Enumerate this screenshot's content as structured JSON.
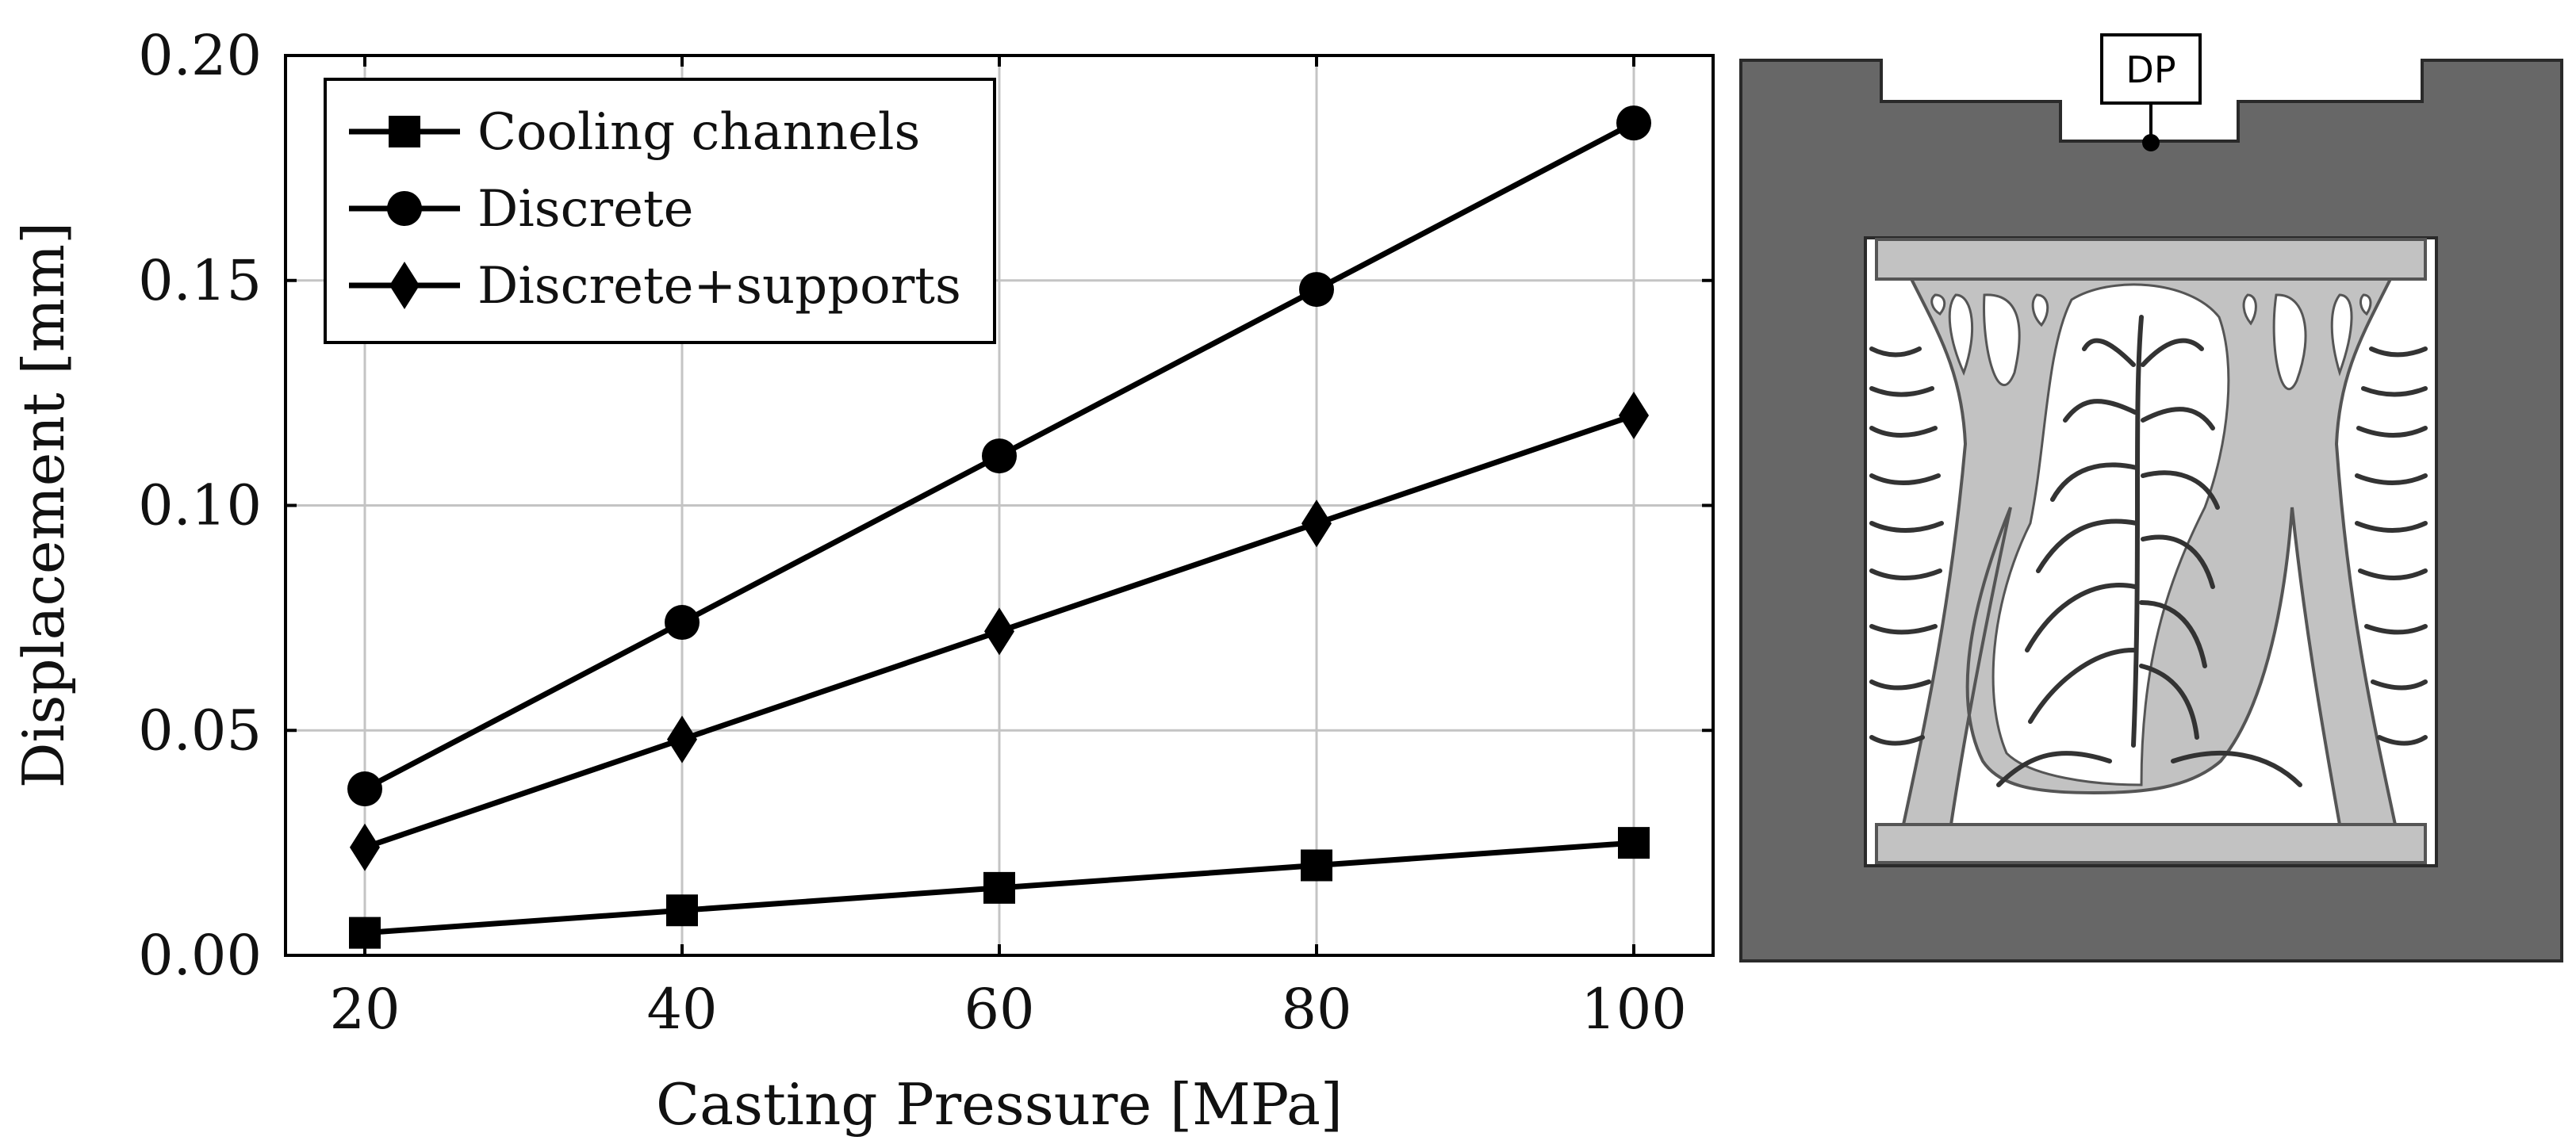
{
  "chart_data": {
    "type": "line",
    "title": "",
    "xlabel": "Casting Pressure [MPa]",
    "ylabel": "Displacement [mm]",
    "x": [
      20,
      40,
      60,
      80,
      100
    ],
    "xticks": [
      "20",
      "40",
      "60",
      "80",
      "100"
    ],
    "yticks": [
      "0.00",
      "0.05",
      "0.10",
      "0.15",
      "0.20"
    ],
    "ytick_values": [
      0.0,
      0.05,
      0.1,
      0.15,
      0.2
    ],
    "xlim": [
      15,
      105
    ],
    "ylim": [
      0.0,
      0.2
    ],
    "grid": true,
    "legend_position": "top-left",
    "series": [
      {
        "name": "Cooling channels",
        "marker": "square",
        "values": [
          0.005,
          0.01,
          0.015,
          0.02,
          0.025
        ]
      },
      {
        "name": "Discrete",
        "marker": "circle",
        "values": [
          0.037,
          0.074,
          0.111,
          0.148,
          0.185
        ]
      },
      {
        "name": "Discrete+supports",
        "marker": "diamond",
        "values": [
          0.024,
          0.048,
          0.072,
          0.096,
          0.12
        ]
      }
    ]
  },
  "diagram": {
    "sensor_label": "DP",
    "colors": {
      "mold": "#676767",
      "part": "#c2c2c2",
      "cavity": "#ffffff",
      "outline": "#222222"
    }
  }
}
